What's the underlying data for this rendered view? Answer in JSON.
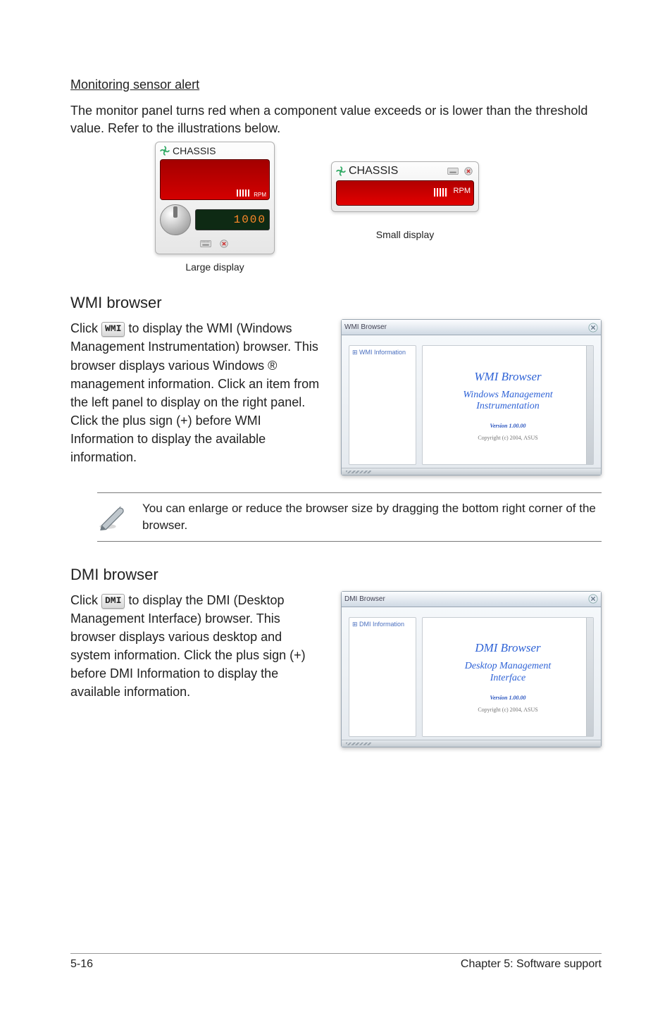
{
  "section1_heading": "Monitoring sensor alert",
  "section1_body": "The monitor panel turns red when a component value exceeds or is lower than the threshold value. Refer to the illustrations below.",
  "chassis_label": "CHASSIS",
  "rpm_label": "RPM",
  "lcd_value": "1000",
  "large_caption": "Large display",
  "small_caption": "Small display",
  "wmi_heading": "WMI browser",
  "wmi_btn": "WMI",
  "wmi_text_before": "Click ",
  "wmi_text_after": " to display the WMI (Windows Management Instrumentation) browser. This browser displays various Windows ® management information. Click an item from the left panel to display on the right panel. Click the plus sign (+) before WMI Information to display the available information.",
  "wmi_win_title": "WMI Browser",
  "wmi_tree_item": "WMI Information",
  "wmi_main": "WMI Browser",
  "wmi_sub": "Windows Management\nInstrumentation",
  "wmi_ver": "Version 1.00.00",
  "wmi_cpy": "Copyright (c) 2004, ASUS",
  "note_text": "You can enlarge or reduce the browser size by dragging the bottom right corner of the browser.",
  "dmi_heading": "DMI browser",
  "dmi_btn": "DMI",
  "dmi_text_before": "Click ",
  "dmi_text_after": " to display the DMI (Desktop Management Interface) browser. This browser displays various desktop and system information. Click the plus sign (+) before DMI Information to display the available information.",
  "dmi_win_title": "DMI Browser",
  "dmi_tree_item": "DMI Information",
  "dmi_main": "DMI Browser",
  "dmi_sub": "Desktop Management\nInterface",
  "dmi_ver": "Version 1.00.00",
  "dmi_cpy": "Copyright (c) 2004, ASUS",
  "footer_left": "5-16",
  "footer_right": "Chapter 5: Software support",
  "colors": {
    "alert_red": "#d40000",
    "lcd_bg": "#0e2a14",
    "lcd_digit": "#ff8a2a",
    "link_blue": "#2f63d6"
  }
}
